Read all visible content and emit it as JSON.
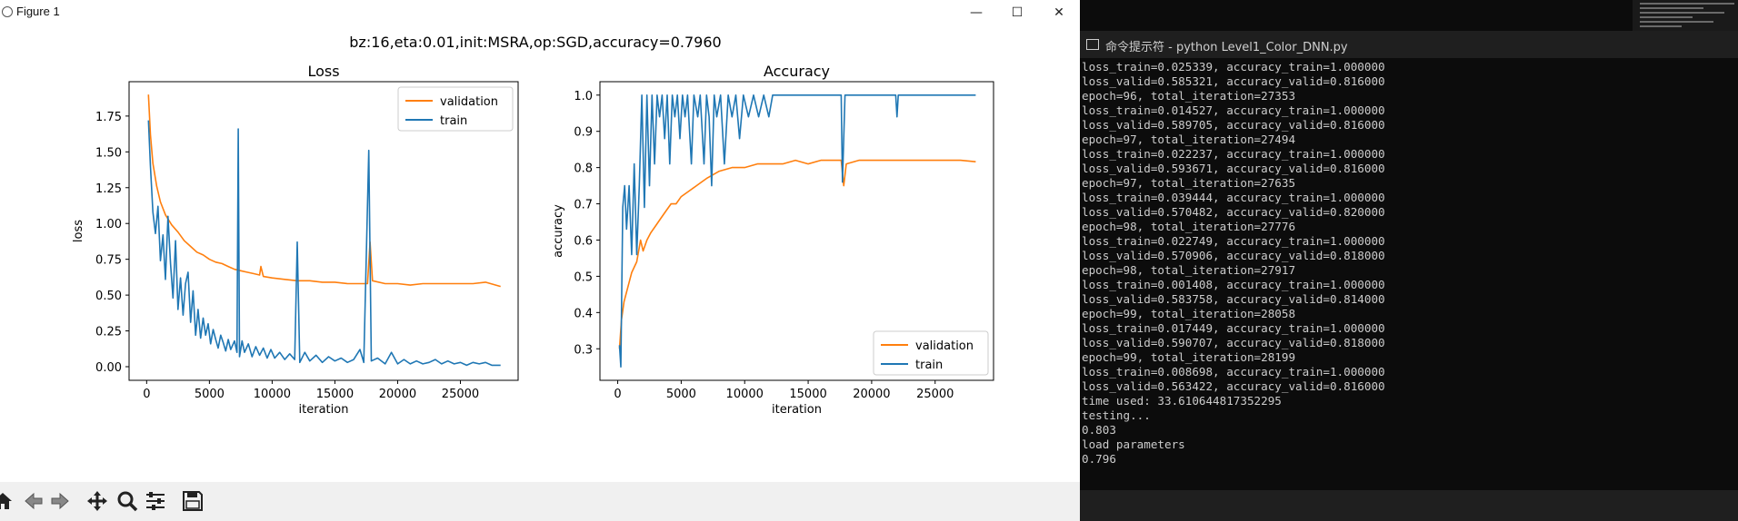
{
  "window": {
    "title": "Figure 1",
    "minimize": "—",
    "maximize": "☐",
    "close": "✕"
  },
  "figure": {
    "suptitle": "bz:16,eta:0.01,init:MSRA,op:SGD,accuracy=0.7960"
  },
  "colors": {
    "validation": "#ff7f0e",
    "train": "#1f77b4",
    "console_bg": "#0c0c0c",
    "console_text": "#cccccc"
  },
  "toolbar": {
    "items": [
      "home-icon",
      "back-icon",
      "forward-icon",
      "pan-icon",
      "zoom-icon",
      "configure-icon",
      "save-icon"
    ]
  },
  "console": {
    "title": "命令提示符 - python  Level1_Color_DNN.py",
    "lines": [
      "loss_train=0.025339, accuracy_train=1.000000",
      "loss_valid=0.585321, accuracy_valid=0.816000",
      "epoch=96, total_iteration=27353",
      "loss_train=0.014527, accuracy_train=1.000000",
      "loss_valid=0.589705, accuracy_valid=0.816000",
      "epoch=97, total_iteration=27494",
      "loss_train=0.022237, accuracy_train=1.000000",
      "loss_valid=0.593671, accuracy_valid=0.816000",
      "epoch=97, total_iteration=27635",
      "loss_train=0.039444, accuracy_train=1.000000",
      "loss_valid=0.570482, accuracy_valid=0.820000",
      "epoch=98, total_iteration=27776",
      "loss_train=0.022749, accuracy_train=1.000000",
      "loss_valid=0.570906, accuracy_valid=0.818000",
      "epoch=98, total_iteration=27917",
      "loss_train=0.001408, accuracy_train=1.000000",
      "loss_valid=0.583758, accuracy_valid=0.814000",
      "epoch=99, total_iteration=28058",
      "loss_train=0.017449, accuracy_train=1.000000",
      "loss_valid=0.590707, accuracy_valid=0.818000",
      "epoch=99, total_iteration=28199",
      "loss_train=0.008698, accuracy_train=1.000000",
      "loss_valid=0.563422, accuracy_valid=0.816000",
      "time used: 33.610644817352295",
      "testing...",
      "0.803",
      "load parameters",
      "0.796"
    ]
  },
  "chart_data": [
    {
      "type": "line",
      "title": "Loss",
      "xlabel": "iteration",
      "ylabel": "loss",
      "xlim": [
        -1400,
        29600
      ],
      "ylim": [
        -0.095,
        1.99
      ],
      "xticks": [
        0,
        5000,
        10000,
        15000,
        20000,
        25000
      ],
      "xtick_labels": [
        "0",
        "5000",
        "10000",
        "15000",
        "20000",
        "25000"
      ],
      "yticks": [
        0.0,
        0.25,
        0.5,
        0.75,
        1.0,
        1.25,
        1.5,
        1.75
      ],
      "ytick_labels": [
        "0.00",
        "0.25",
        "0.50",
        "0.75",
        "1.00",
        "1.25",
        "1.50",
        "1.75"
      ],
      "legend": "top-right",
      "grid": false,
      "series": [
        {
          "name": "validation",
          "key": "validation",
          "points": [
            [
              141,
              1.9
            ],
            [
              300,
              1.62
            ],
            [
              500,
              1.42
            ],
            [
              800,
              1.26
            ],
            [
              1100,
              1.15
            ],
            [
              1500,
              1.06
            ],
            [
              2000,
              0.99
            ],
            [
              2500,
              0.94
            ],
            [
              3000,
              0.88
            ],
            [
              3500,
              0.84
            ],
            [
              4000,
              0.8
            ],
            [
              4500,
              0.78
            ],
            [
              5000,
              0.75
            ],
            [
              5500,
              0.73
            ],
            [
              6000,
              0.72
            ],
            [
              6500,
              0.7
            ],
            [
              7000,
              0.68
            ],
            [
              7500,
              0.67
            ],
            [
              8000,
              0.66
            ],
            [
              8500,
              0.65
            ],
            [
              9000,
              0.64
            ],
            [
              9100,
              0.7
            ],
            [
              9300,
              0.63
            ],
            [
              10000,
              0.62
            ],
            [
              11000,
              0.61
            ],
            [
              12000,
              0.6
            ],
            [
              13000,
              0.6
            ],
            [
              14000,
              0.59
            ],
            [
              15000,
              0.59
            ],
            [
              16000,
              0.58
            ],
            [
              17000,
              0.58
            ],
            [
              17600,
              0.58
            ],
            [
              17800,
              0.87
            ],
            [
              18000,
              0.6
            ],
            [
              19000,
              0.58
            ],
            [
              20000,
              0.58
            ],
            [
              21000,
              0.57
            ],
            [
              22000,
              0.58
            ],
            [
              23000,
              0.58
            ],
            [
              24000,
              0.58
            ],
            [
              25000,
              0.58
            ],
            [
              26000,
              0.58
            ],
            [
              27000,
              0.59
            ],
            [
              28199,
              0.56
            ]
          ]
        },
        {
          "name": "train",
          "key": "train",
          "points": [
            [
              141,
              1.72
            ],
            [
              300,
              1.4
            ],
            [
              500,
              1.08
            ],
            [
              700,
              0.93
            ],
            [
              900,
              1.12
            ],
            [
              1100,
              0.74
            ],
            [
              1300,
              0.92
            ],
            [
              1500,
              0.61
            ],
            [
              1700,
              1.05
            ],
            [
              1900,
              0.72
            ],
            [
              2100,
              0.48
            ],
            [
              2300,
              0.88
            ],
            [
              2500,
              0.4
            ],
            [
              2700,
              0.62
            ],
            [
              2900,
              0.36
            ],
            [
              3100,
              0.58
            ],
            [
              3300,
              0.66
            ],
            [
              3500,
              0.31
            ],
            [
              3700,
              0.53
            ],
            [
              3900,
              0.22
            ],
            [
              4100,
              0.4
            ],
            [
              4300,
              0.2
            ],
            [
              4500,
              0.34
            ],
            [
              4700,
              0.22
            ],
            [
              4900,
              0.3
            ],
            [
              5100,
              0.16
            ],
            [
              5300,
              0.26
            ],
            [
              5500,
              0.19
            ],
            [
              5700,
              0.13
            ],
            [
              5900,
              0.22
            ],
            [
              6100,
              0.17
            ],
            [
              6300,
              0.11
            ],
            [
              6500,
              0.19
            ],
            [
              6700,
              0.12
            ],
            [
              7000,
              0.18
            ],
            [
              7200,
              0.1
            ],
            [
              7300,
              1.66
            ],
            [
              7400,
              0.07
            ],
            [
              7600,
              0.18
            ],
            [
              7800,
              0.1
            ],
            [
              8100,
              0.16
            ],
            [
              8400,
              0.07
            ],
            [
              8700,
              0.14
            ],
            [
              9000,
              0.08
            ],
            [
              9300,
              0.13
            ],
            [
              9600,
              0.06
            ],
            [
              9900,
              0.12
            ],
            [
              10200,
              0.06
            ],
            [
              10600,
              0.1
            ],
            [
              11000,
              0.05
            ],
            [
              11400,
              0.09
            ],
            [
              11800,
              0.05
            ],
            [
              12000,
              0.87
            ],
            [
              12200,
              0.03
            ],
            [
              12600,
              0.1
            ],
            [
              13000,
              0.04
            ],
            [
              13500,
              0.08
            ],
            [
              14000,
              0.03
            ],
            [
              14500,
              0.07
            ],
            [
              15000,
              0.04
            ],
            [
              15500,
              0.06
            ],
            [
              16000,
              0.03
            ],
            [
              16500,
              0.05
            ],
            [
              17000,
              0.12
            ],
            [
              17300,
              0.03
            ],
            [
              17700,
              1.51
            ],
            [
              17900,
              0.04
            ],
            [
              18400,
              0.06
            ],
            [
              19000,
              0.02
            ],
            [
              19500,
              0.1
            ],
            [
              20000,
              0.02
            ],
            [
              20500,
              0.05
            ],
            [
              21000,
              0.02
            ],
            [
              21500,
              0.04
            ],
            [
              22000,
              0.02
            ],
            [
              22500,
              0.03
            ],
            [
              23000,
              0.05
            ],
            [
              23500,
              0.02
            ],
            [
              24000,
              0.04
            ],
            [
              24500,
              0.02
            ],
            [
              25000,
              0.03
            ],
            [
              25500,
              0.01
            ],
            [
              26000,
              0.03
            ],
            [
              26500,
              0.02
            ],
            [
              27000,
              0.03
            ],
            [
              27500,
              0.01
            ],
            [
              28199,
              0.01
            ]
          ]
        }
      ]
    },
    {
      "type": "line",
      "title": "Accuracy",
      "xlabel": "iteration",
      "ylabel": "accuracy",
      "xlim": [
        -1400,
        29600
      ],
      "ylim": [
        0.213,
        1.037
      ],
      "xticks": [
        0,
        5000,
        10000,
        15000,
        20000,
        25000
      ],
      "xtick_labels": [
        "0",
        "5000",
        "10000",
        "15000",
        "20000",
        "25000"
      ],
      "yticks": [
        0.3,
        0.4,
        0.5,
        0.6,
        0.7,
        0.8,
        0.9,
        1.0
      ],
      "ytick_labels": [
        "0.3",
        "0.4",
        "0.5",
        "0.6",
        "0.7",
        "0.8",
        "0.9",
        "1.0"
      ],
      "legend": "bottom-right",
      "grid": false,
      "series": [
        {
          "name": "validation",
          "key": "validation",
          "points": [
            [
              141,
              0.3
            ],
            [
              300,
              0.38
            ],
            [
              500,
              0.43
            ],
            [
              800,
              0.47
            ],
            [
              1100,
              0.51
            ],
            [
              1500,
              0.54
            ],
            [
              1800,
              0.6
            ],
            [
              2000,
              0.57
            ],
            [
              2300,
              0.6
            ],
            [
              2600,
              0.62
            ],
            [
              3000,
              0.64
            ],
            [
              3400,
              0.66
            ],
            [
              3800,
              0.68
            ],
            [
              4200,
              0.7
            ],
            [
              4600,
              0.7
            ],
            [
              5000,
              0.72
            ],
            [
              5400,
              0.73
            ],
            [
              5800,
              0.74
            ],
            [
              6200,
              0.75
            ],
            [
              6600,
              0.76
            ],
            [
              7000,
              0.77
            ],
            [
              7500,
              0.78
            ],
            [
              8000,
              0.79
            ],
            [
              9000,
              0.8
            ],
            [
              10000,
              0.8
            ],
            [
              11000,
              0.81
            ],
            [
              12000,
              0.81
            ],
            [
              13000,
              0.81
            ],
            [
              14000,
              0.82
            ],
            [
              15000,
              0.81
            ],
            [
              16000,
              0.82
            ],
            [
              17000,
              0.82
            ],
            [
              17600,
              0.82
            ],
            [
              17800,
              0.75
            ],
            [
              18000,
              0.81
            ],
            [
              19000,
              0.82
            ],
            [
              20000,
              0.82
            ],
            [
              21000,
              0.82
            ],
            [
              22000,
              0.82
            ],
            [
              23000,
              0.82
            ],
            [
              24000,
              0.82
            ],
            [
              25000,
              0.82
            ],
            [
              26000,
              0.82
            ],
            [
              27000,
              0.82
            ],
            [
              28199,
              0.816
            ]
          ]
        },
        {
          "name": "train",
          "key": "train",
          "points": [
            [
              141,
              0.31
            ],
            [
              250,
              0.25
            ],
            [
              400,
              0.69
            ],
            [
              550,
              0.75
            ],
            [
              700,
              0.63
            ],
            [
              900,
              0.75
            ],
            [
              1100,
              0.56
            ],
            [
              1300,
              0.81
            ],
            [
              1500,
              0.56
            ],
            [
              1700,
              0.75
            ],
            [
              1900,
              1.0
            ],
            [
              2100,
              0.69
            ],
            [
              2300,
              1.0
            ],
            [
              2500,
              0.75
            ],
            [
              2700,
              1.0
            ],
            [
              2900,
              0.81
            ],
            [
              3100,
              1.0
            ],
            [
              3300,
              0.94
            ],
            [
              3500,
              1.0
            ],
            [
              3700,
              0.88
            ],
            [
              3900,
              1.0
            ],
            [
              4100,
              0.81
            ],
            [
              4300,
              1.0
            ],
            [
              4500,
              0.94
            ],
            [
              4700,
              1.0
            ],
            [
              4900,
              0.88
            ],
            [
              5100,
              1.0
            ],
            [
              5300,
              0.94
            ],
            [
              5500,
              1.0
            ],
            [
              5800,
              0.81
            ],
            [
              6000,
              1.0
            ],
            [
              6300,
              0.94
            ],
            [
              6500,
              1.0
            ],
            [
              6800,
              0.81
            ],
            [
              7000,
              1.0
            ],
            [
              7200,
              0.94
            ],
            [
              7400,
              0.75
            ],
            [
              7600,
              1.0
            ],
            [
              7800,
              0.94
            ],
            [
              8100,
              1.0
            ],
            [
              8400,
              0.81
            ],
            [
              8700,
              1.0
            ],
            [
              9000,
              0.94
            ],
            [
              9300,
              1.0
            ],
            [
              9600,
              0.88
            ],
            [
              9900,
              1.0
            ],
            [
              10300,
              0.94
            ],
            [
              10700,
              1.0
            ],
            [
              11100,
              0.94
            ],
            [
              11500,
              1.0
            ],
            [
              11900,
              0.94
            ],
            [
              12200,
              1.0
            ],
            [
              17600,
              1.0
            ],
            [
              17700,
              0.76
            ],
            [
              17900,
              1.0
            ],
            [
              21900,
              1.0
            ],
            [
              22000,
              0.94
            ],
            [
              22100,
              1.0
            ],
            [
              28199,
              1.0
            ]
          ]
        }
      ]
    }
  ]
}
